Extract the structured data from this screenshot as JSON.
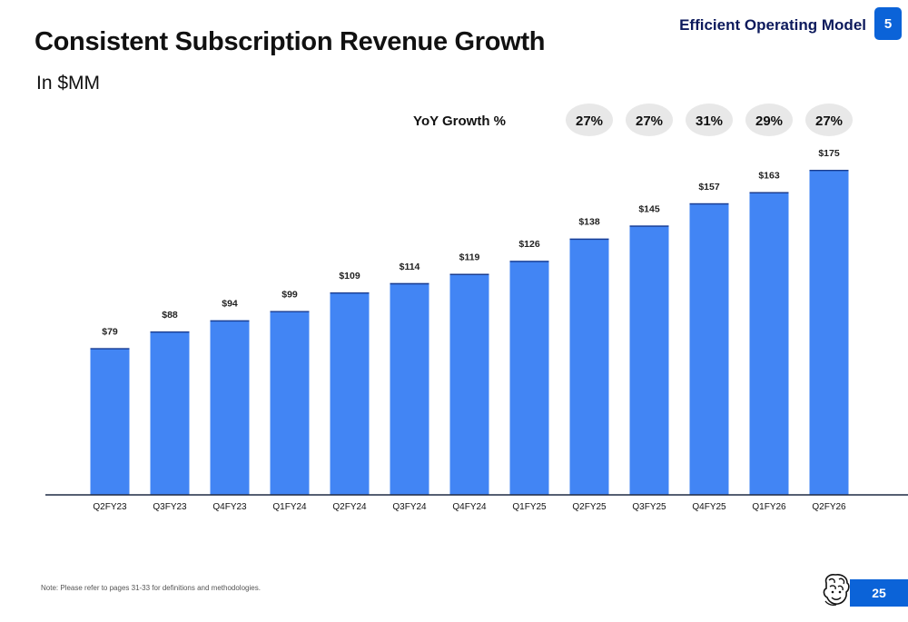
{
  "header": {
    "section_tag": "Efficient Operating Model",
    "section_number": "5",
    "title": "Consistent Subscription Revenue Growth",
    "subtitle": "In $MM"
  },
  "colors": {
    "bar": "#4285f4",
    "bar_top": "#1a3c8f",
    "accent": "#0b63d8",
    "yoy_pill": "#e8e8e8",
    "baseline": "#1f2a44"
  },
  "yoy": {
    "label": "YoY Growth %",
    "values": [
      "27%",
      "27%",
      "31%",
      "29%",
      "27%"
    ],
    "aligned_to": [
      "Q2FY25",
      "Q3FY25",
      "Q4FY25",
      "Q1FY26",
      "Q2FY26"
    ]
  },
  "chart_data": {
    "type": "bar",
    "title": "Consistent Subscription Revenue Growth",
    "subtitle": "In $MM",
    "categories": [
      "Q2FY23",
      "Q3FY23",
      "Q4FY23",
      "Q1FY24",
      "Q2FY24",
      "Q3FY24",
      "Q4FY24",
      "Q1FY25",
      "Q2FY25",
      "Q3FY25",
      "Q4FY25",
      "Q1FY26",
      "Q2FY26"
    ],
    "values": [
      79,
      88,
      94,
      99,
      109,
      114,
      119,
      126,
      138,
      145,
      157,
      163,
      175
    ],
    "data_labels": [
      "$79",
      "$88",
      "$94",
      "$99",
      "$109",
      "$114",
      "$119",
      "$126",
      "$138",
      "$145",
      "$157",
      "$163",
      "$175"
    ],
    "ylim": [
      0,
      175
    ],
    "grid": false,
    "legend": "none"
  },
  "footer": {
    "note": "Note:  Please refer to pages 31-33 for definitions and methodologies.",
    "page_number": "25",
    "logo_icon": "bison-mascot-icon"
  }
}
